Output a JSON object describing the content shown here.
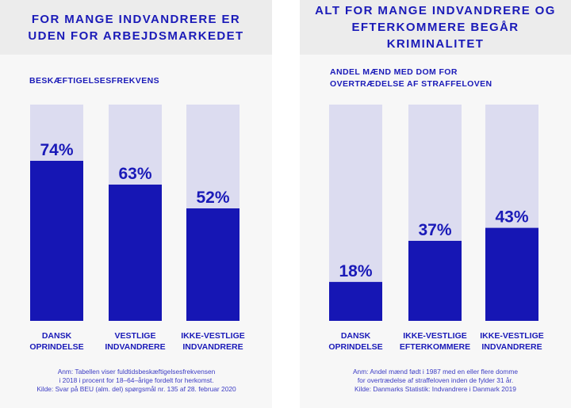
{
  "left_panel": {
    "title": [
      "FOR MANGE INDVANDRERE ER",
      "UDEN FOR ARBEJDSMARKEDET"
    ],
    "subtitle": "BESKÆFTIGELSESFREKVENS",
    "note": [
      "Anm: Tabellen viser fuldtidsbeskæftigelsesfrekvensen",
      "i 2018 i procent for 18–64–årige fordelt for herkomst.",
      "Kilde: Svar på BEU (alm. del) spørgsmål nr. 135 af 28. februar 2020"
    ]
  },
  "right_panel": {
    "title": [
      "ALT FOR MANGE INDVANDRERE OG",
      "EFTERKOMMERE BEGÅR KRIMINALITET"
    ],
    "subtitle": [
      "ANDEL MÆND MED DOM FOR",
      "OVERTRÆDELSE AF STRAFFELOVEN"
    ],
    "note": [
      "Anm: Andel mænd født i 1987 med en eller flere domme",
      "for overtrædelse af straffeloven inden de fylder 31 år.",
      "Kilde: Danmarks Statistik: Indvandrere i Danmark 2019"
    ]
  },
  "colors": {
    "bar": "#1616b4",
    "track": "#dcdcf0",
    "text": "#1a1ab8",
    "panel": "#f7f7f7",
    "header": "#ececec"
  },
  "chart_data": [
    {
      "type": "bar",
      "title": "FOR MANGE INDVANDRERE ER UDEN FOR ARBEJDSMARKEDET",
      "subtitle": "BESKÆFTIGELSESFREKVENS",
      "categories": [
        [
          "DANSK",
          "OPRINDELSE"
        ],
        [
          "VESTLIGE",
          "INDVANDRERE"
        ],
        [
          "IKKE-VESTLIGE",
          "INDVANDRERE"
        ]
      ],
      "values": [
        74,
        63,
        52
      ],
      "labels": [
        "74%",
        "63%",
        "52%"
      ],
      "ylim": [
        0,
        100
      ],
      "grid": false,
      "legend": "none"
    },
    {
      "type": "bar",
      "title": "ALT FOR MANGE INDVANDRERE OG EFTERKOMMERE BEGÅR KRIMINALITET",
      "subtitle": "ANDEL MÆND MED DOM FOR OVERTRÆDELSE AF STRAFFELOVEN",
      "categories": [
        [
          "DANSK",
          "OPRINDELSE"
        ],
        [
          "IKKE-VESTLIGE",
          "EFTERKOMMERE"
        ],
        [
          "IKKE-VESTLIGE",
          "INDVANDRERE"
        ]
      ],
      "values": [
        18,
        37,
        43
      ],
      "labels": [
        "18%",
        "37%",
        "43%"
      ],
      "ylim": [
        0,
        100
      ],
      "grid": false,
      "legend": "none"
    }
  ]
}
